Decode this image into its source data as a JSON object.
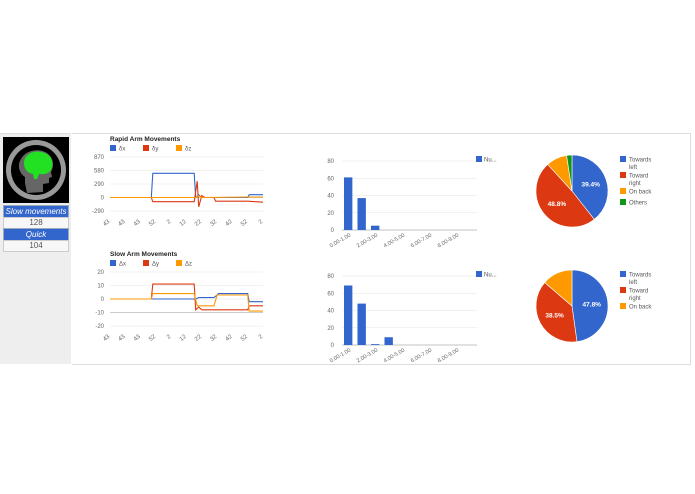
{
  "sidebar": {
    "avatar_icon": "brain-head-icon",
    "stats": [
      {
        "label": "Slow movements",
        "value": "128"
      },
      {
        "label": "Quick movements",
        "value": "104"
      }
    ]
  },
  "colors": {
    "blue": "#3366cc",
    "red": "#dc3912",
    "orange": "#ff9900",
    "green": "#109618"
  },
  "chart_data": [
    {
      "type": "line",
      "title": "Rapid Arm Movements",
      "legend": [
        "δx",
        "δy",
        "δz"
      ],
      "yticks": [
        "870",
        "580",
        "290",
        "0",
        "-290"
      ],
      "ylim": [
        -290,
        870
      ],
      "xticks": [
        "43",
        "43",
        "43",
        "52",
        "2",
        "12",
        "22",
        "32",
        "42",
        "52",
        "2"
      ],
      "series": [
        {
          "name": "δx",
          "points": [
            [
              0,
              0
            ],
            [
              0.27,
              0
            ],
            [
              0.28,
              520
            ],
            [
              0.55,
              520
            ],
            [
              0.56,
              0
            ],
            [
              0.58,
              60
            ],
            [
              0.6,
              0
            ],
            [
              0.9,
              0
            ],
            [
              0.91,
              60
            ],
            [
              1,
              60
            ]
          ]
        },
        {
          "name": "δy",
          "points": [
            [
              0,
              0
            ],
            [
              0.27,
              0
            ],
            [
              0.28,
              -90
            ],
            [
              0.55,
              -90
            ],
            [
              0.57,
              350
            ],
            [
              0.58,
              -200
            ],
            [
              0.6,
              40
            ],
            [
              0.62,
              0
            ],
            [
              0.68,
              0
            ],
            [
              0.69,
              -80
            ],
            [
              0.9,
              -80
            ],
            [
              1,
              -100
            ]
          ]
        },
        {
          "name": "δz",
          "points": [
            [
              0,
              0
            ],
            [
              0.56,
              0
            ],
            [
              0.58,
              40
            ],
            [
              0.6,
              0
            ],
            [
              0.9,
              10
            ],
            [
              1,
              10
            ]
          ]
        }
      ]
    },
    {
      "type": "bar",
      "legend": [
        "Nu..."
      ],
      "yticks": [
        "80",
        "60",
        "40",
        "20",
        "0"
      ],
      "ylim": [
        0,
        80
      ],
      "categories": [
        "0.00-1.00",
        "1.00-2.00",
        "2.00-3.00",
        "3.00-4.00",
        "4.00-5.00",
        "5.00-6.00",
        "6.00-7.00",
        "7.00-8.00",
        "8.00-9.00",
        "9.00-10.00"
      ],
      "xtick_labels": [
        "0.00-1.00",
        "2.00-3.00",
        "4.00-5.00",
        "6.00-7.00",
        "8.00-9.00"
      ],
      "values": [
        61,
        37,
        5,
        0,
        0,
        0,
        0,
        0,
        0,
        0
      ]
    },
    {
      "type": "pie",
      "legend": [
        "Towards left",
        "Toward right",
        "On back",
        "Others"
      ],
      "values": [
        39.4,
        48.8,
        9.4,
        2.4
      ],
      "labels": [
        "39.4%",
        "48.8%",
        "",
        ""
      ]
    },
    {
      "type": "line",
      "title": "Slow Arm Movements",
      "legend": [
        "Δx",
        "Δy",
        "Δz"
      ],
      "yticks": [
        "20",
        "10",
        "0",
        "-10",
        "-20"
      ],
      "ylim": [
        -20,
        20
      ],
      "xticks": [
        "43",
        "43",
        "43",
        "52",
        "2",
        "12",
        "22",
        "32",
        "42",
        "52",
        "2"
      ],
      "series": [
        {
          "name": "Δx",
          "points": [
            [
              0,
              0
            ],
            [
              0.56,
              0
            ],
            [
              0.58,
              1
            ],
            [
              0.68,
              1
            ],
            [
              0.7,
              3
            ],
            [
              0.71,
              4
            ],
            [
              0.9,
              4
            ],
            [
              0.91,
              -2
            ],
            [
              1,
              -2
            ]
          ]
        },
        {
          "name": "Δy",
          "points": [
            [
              0,
              0
            ],
            [
              0.27,
              0
            ],
            [
              0.28,
              11
            ],
            [
              0.55,
              11
            ],
            [
              0.56,
              -8
            ],
            [
              0.58,
              -6
            ],
            [
              0.6,
              -8
            ],
            [
              0.9,
              -8
            ],
            [
              0.91,
              -5
            ],
            [
              1,
              -5
            ]
          ]
        },
        {
          "name": "Δz",
          "points": [
            [
              0,
              0
            ],
            [
              0.27,
              0
            ],
            [
              0.28,
              4
            ],
            [
              0.55,
              4
            ],
            [
              0.57,
              -5
            ],
            [
              0.68,
              -5
            ],
            [
              0.7,
              3
            ],
            [
              0.9,
              3
            ],
            [
              0.91,
              -9
            ],
            [
              1,
              -9
            ]
          ]
        }
      ]
    },
    {
      "type": "bar",
      "legend": [
        "Nu..."
      ],
      "yticks": [
        "80",
        "60",
        "40",
        "20",
        "0"
      ],
      "ylim": [
        0,
        80
      ],
      "categories": [
        "0.00-1.00",
        "1.00-2.00",
        "2.00-3.00",
        "3.00-4.00",
        "4.00-5.00",
        "5.00-6.00",
        "6.00-7.00",
        "7.00-8.00",
        "8.00-9.00",
        "9.00-10.00"
      ],
      "xtick_labels": [
        "0.00-1.00",
        "2.00-3.00",
        "4.00-5.00",
        "6.00-7.00",
        "8.00-9.00"
      ],
      "values": [
        69,
        48,
        1,
        9,
        0,
        0,
        0,
        0,
        0,
        0
      ]
    },
    {
      "type": "pie",
      "legend": [
        "Towards left",
        "Toward right",
        "On back"
      ],
      "values": [
        47.8,
        38.5,
        13.7
      ],
      "labels": [
        "47.8%",
        "38.5%",
        ""
      ]
    }
  ]
}
